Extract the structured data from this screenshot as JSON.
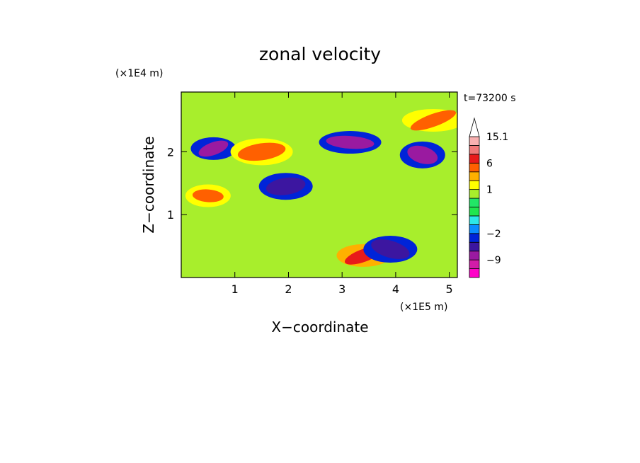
{
  "chart_data": {
    "type": "heatmap",
    "title": "zonal velocity",
    "xlabel": "X−coordinate",
    "ylabel": "Z−coordinate",
    "x_unit_label": "(×1E5 m)",
    "y_unit_label": "(×1E4 m)",
    "time_label": "t=73200 s",
    "xlim": [
      0,
      5.15
    ],
    "ylim": [
      0,
      2.95
    ],
    "x_ticks": [
      1,
      2,
      3,
      4,
      5
    ],
    "y_ticks": [
      1,
      2
    ],
    "colorbar": {
      "levels": [
        -15,
        -12,
        -9,
        -6,
        -4,
        -2,
        -1,
        -0.5,
        0,
        0.5,
        1,
        2,
        4,
        6,
        9,
        12,
        15.1
      ],
      "colors": [
        "#ff00c8",
        "#d21ca8",
        "#9a1aa0",
        "#3c16a0",
        "#0024d8",
        "#0b8dff",
        "#2ce8e8",
        "#20e64e",
        "#22e666",
        "#a8ee2c",
        "#ffff00",
        "#ffb000",
        "#ff6000",
        "#e81a1a",
        "#f07878",
        "#f8b0b0",
        "#ffffff"
      ],
      "tick_labels": [
        "15.1",
        "6",
        "1",
        "−2",
        "−9"
      ],
      "tick_values": [
        15.1,
        6,
        1,
        -2,
        -9
      ],
      "extend": "max"
    },
    "field_features": [
      {
        "x": 0.6,
        "z": 2.05,
        "value": -9
      },
      {
        "x": 1.95,
        "z": 1.45,
        "value": -6
      },
      {
        "x": 3.15,
        "z": 2.15,
        "value": -9
      },
      {
        "x": 4.5,
        "z": 1.95,
        "value": -9
      },
      {
        "x": 3.4,
        "z": 0.35,
        "value": 6
      },
      {
        "x": 1.5,
        "z": 2.0,
        "value": 4
      },
      {
        "x": 0.5,
        "z": 1.3,
        "value": 4
      },
      {
        "x": 3.9,
        "z": 0.45,
        "value": -6
      },
      {
        "x": 4.7,
        "z": 2.5,
        "value": 4
      }
    ]
  }
}
